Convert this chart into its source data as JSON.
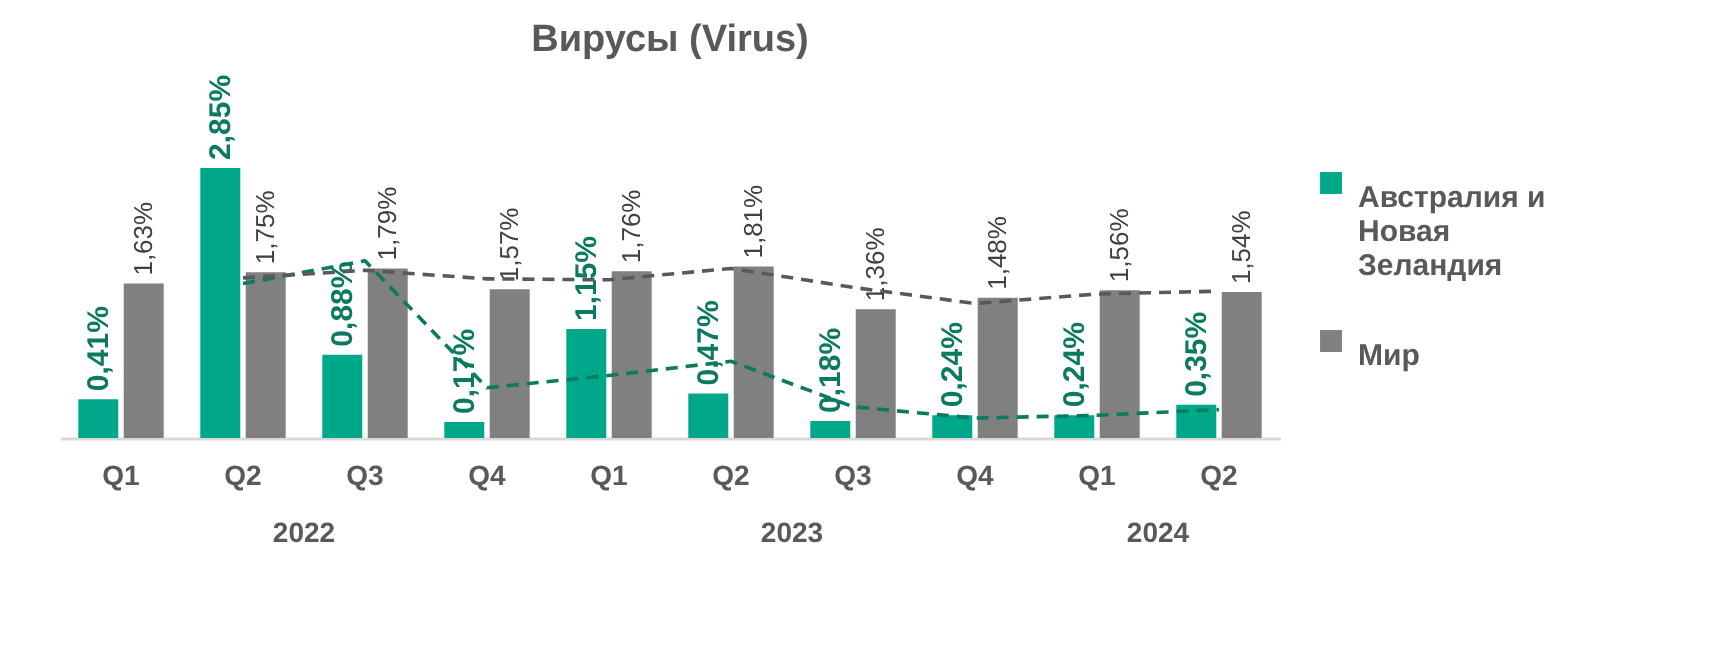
{
  "chart_data": {
    "type": "bar",
    "title": "Вирусы (Virus)",
    "categories": [
      "Q1",
      "Q2",
      "Q3",
      "Q4",
      "Q1",
      "Q2",
      "Q3",
      "Q4",
      "Q1",
      "Q2"
    ],
    "annotations": [
      "2022",
      "2023",
      "2024"
    ],
    "series": [
      {
        "name": "Австралия и Новая Зеландия",
        "color": "#00a88a",
        "values": [
          0.41,
          2.85,
          0.88,
          0.17,
          1.15,
          0.47,
          0.18,
          0.24,
          0.24,
          0.35
        ],
        "value_labels": [
          "0,41%",
          "2,85%",
          "0,88%",
          "0,17%",
          "1,15%",
          "0,47%",
          "0,18%",
          "0,24%",
          "0,24%",
          "0,35%"
        ]
      },
      {
        "name": "Мир",
        "color": "#808080",
        "values": [
          1.63,
          1.75,
          1.79,
          1.57,
          1.76,
          1.81,
          1.36,
          1.48,
          1.56,
          1.54
        ],
        "value_labels": [
          "1,63%",
          "1,75%",
          "1,79%",
          "1,57%",
          "1,76%",
          "1,81%",
          "1,36%",
          "1,48%",
          "1,56%",
          "1,54%"
        ]
      },
      {
        "type": "line",
        "color": "#0b7a60",
        "values": [
          null,
          1.63,
          1.87,
          0.53,
          0.66,
          0.81,
          0.33,
          0.21,
          0.24,
          0.3
        ]
      },
      {
        "type": "line",
        "color": "#595959",
        "values": [
          null,
          1.69,
          1.77,
          1.68,
          1.67,
          1.79,
          1.59,
          1.42,
          1.52,
          1.55
        ]
      }
    ],
    "line_style": "dashed",
    "legend": "right",
    "tick_labels": "x"
  }
}
